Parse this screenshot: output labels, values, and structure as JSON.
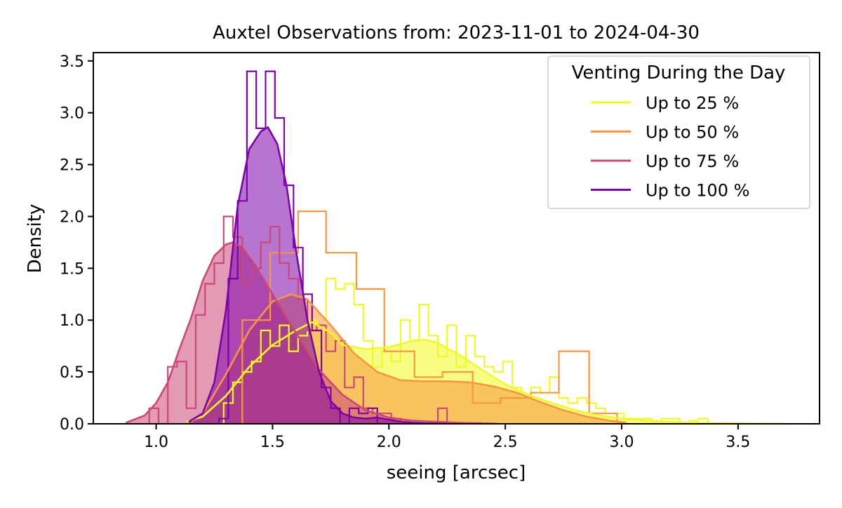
{
  "chart_data": {
    "type": "histogram_kde",
    "title": "Auxtel Observations from: 2023-11-01 to 2024-04-30",
    "xlabel": "seeing [arcsec]",
    "ylabel": "Density",
    "xlim": [
      0.73,
      3.85
    ],
    "ylim": [
      0,
      3.58
    ],
    "xticks": [
      1.0,
      1.5,
      2.0,
      2.5,
      3.0,
      3.5
    ],
    "yticks": [
      0.0,
      0.5,
      1.0,
      1.5,
      2.0,
      2.5,
      3.0,
      3.5
    ],
    "grid": false,
    "legend": {
      "title": "Venting During the Day",
      "position": "top-right"
    },
    "series": [
      {
        "name": "Up to 25 %",
        "color": "#f0f921",
        "hist_edges": [
          1.29,
          1.33,
          1.37,
          1.41,
          1.45,
          1.49,
          1.53,
          1.57,
          1.61,
          1.65,
          1.69,
          1.73,
          1.77,
          1.81,
          1.85,
          1.89,
          1.93,
          1.97,
          2.01,
          2.05,
          2.09,
          2.13,
          2.17,
          2.21,
          2.25,
          2.29,
          2.33,
          2.37,
          2.41,
          2.45,
          2.49,
          2.53,
          2.57,
          2.61,
          2.65,
          2.69,
          2.73,
          2.77,
          2.81,
          2.85,
          2.89,
          2.93,
          2.97,
          3.01,
          3.05,
          3.09,
          3.13,
          3.17,
          3.21,
          3.25,
          3.29,
          3.33,
          3.37
        ],
        "hist_density": [
          0.2,
          0.4,
          0.5,
          0.6,
          0.9,
          0.75,
          0.95,
          0.7,
          0.85,
          1.0,
          0.9,
          1.4,
          1.3,
          1.35,
          1.15,
          0.8,
          0.55,
          0.7,
          0.6,
          1.0,
          0.8,
          1.15,
          0.85,
          0.65,
          0.95,
          0.55,
          0.85,
          0.65,
          0.55,
          0.5,
          0.6,
          0.35,
          0.25,
          0.35,
          0.3,
          0.45,
          0.25,
          0.2,
          0.25,
          0.2,
          0.15,
          0.1,
          0.1,
          0.05,
          0.05,
          0.05,
          0.0,
          0.05,
          0.05,
          0.0,
          0.03,
          0.05
        ],
        "kde_x": [
          1.13,
          1.2,
          1.3,
          1.4,
          1.5,
          1.6,
          1.67,
          1.75,
          1.8,
          1.9,
          2.0,
          2.1,
          2.15,
          2.2,
          2.3,
          2.4,
          2.5,
          2.6,
          2.7,
          2.8,
          2.9,
          3.0,
          3.1,
          3.2,
          3.3,
          3.4,
          3.5,
          3.6,
          3.7
        ],
        "kde_y": [
          0.02,
          0.07,
          0.27,
          0.55,
          0.76,
          0.9,
          0.98,
          0.88,
          0.76,
          0.72,
          0.74,
          0.8,
          0.81,
          0.79,
          0.67,
          0.52,
          0.38,
          0.28,
          0.2,
          0.13,
          0.08,
          0.05,
          0.03,
          0.02,
          0.01,
          0.006,
          0.003,
          0.001,
          0.0
        ]
      },
      {
        "name": "Up to 50 %",
        "color": "#f89540",
        "hist_edges": [
          1.37,
          1.49,
          1.61,
          1.73,
          1.86,
          1.98,
          2.11,
          2.23,
          2.36,
          2.48,
          2.61,
          2.73,
          2.86,
          2.98
        ],
        "hist_density": [
          1.0,
          1.65,
          2.05,
          1.65,
          1.3,
          0.7,
          0.45,
          0.5,
          0.2,
          0.25,
          0.3,
          0.7,
          0.1
        ],
        "kde_x": [
          1.15,
          1.2,
          1.3,
          1.4,
          1.5,
          1.58,
          1.65,
          1.75,
          1.85,
          1.95,
          2.05,
          2.15,
          2.25,
          2.35,
          2.45,
          2.55,
          2.65,
          2.75,
          2.85,
          2.95,
          3.02
        ],
        "kde_y": [
          0.02,
          0.1,
          0.48,
          0.9,
          1.18,
          1.25,
          1.2,
          0.95,
          0.68,
          0.5,
          0.42,
          0.41,
          0.41,
          0.4,
          0.36,
          0.3,
          0.21,
          0.13,
          0.07,
          0.03,
          0.01
        ]
      },
      {
        "name": "Up to 75 %",
        "color": "#cc4778",
        "hist_edges": [
          0.97,
          1.01,
          1.05,
          1.09,
          1.13,
          1.17,
          1.21,
          1.25,
          1.29,
          1.33,
          1.37,
          1.41,
          1.45,
          1.49,
          1.53,
          1.57,
          1.61,
          1.65,
          1.69,
          1.73,
          1.77,
          1.81,
          1.85,
          1.89,
          1.93,
          1.97,
          2.01,
          2.05,
          2.09,
          2.13,
          2.17,
          2.21,
          2.25
        ],
        "hist_density": [
          0.15,
          0.0,
          0.55,
          0.6,
          0.15,
          1.05,
          1.35,
          1.55,
          2.0,
          1.8,
          1.35,
          1.5,
          1.75,
          1.9,
          1.55,
          1.4,
          1.2,
          0.9,
          0.95,
          0.7,
          0.8,
          0.35,
          0.45,
          0.15,
          0.1,
          0.1,
          0.05,
          0.0,
          0.0,
          0.0,
          0.0,
          0.15
        ],
        "kde_x": [
          0.87,
          0.95,
          1.0,
          1.05,
          1.1,
          1.15,
          1.2,
          1.25,
          1.3,
          1.33,
          1.37,
          1.42,
          1.5,
          1.6,
          1.7,
          1.8,
          1.9,
          2.0,
          2.1,
          2.2,
          2.3,
          2.4,
          2.47
        ],
        "kde_y": [
          0.01,
          0.08,
          0.2,
          0.4,
          0.72,
          1.02,
          1.38,
          1.62,
          1.73,
          1.75,
          1.7,
          1.55,
          1.25,
          0.88,
          0.52,
          0.28,
          0.13,
          0.06,
          0.03,
          0.02,
          0.01,
          0.005,
          0.0
        ]
      },
      {
        "name": "Up to 100 %",
        "color": "#7e03a8",
        "hist_edges": [
          1.27,
          1.31,
          1.35,
          1.39,
          1.43,
          1.47,
          1.51,
          1.55,
          1.59,
          1.63,
          1.67,
          1.71,
          1.75,
          1.79,
          1.83,
          1.87,
          1.91,
          1.95
        ],
        "hist_density": [
          0.05,
          1.4,
          2.15,
          3.4,
          2.85,
          3.4,
          2.95,
          2.3,
          1.7,
          1.25,
          0.9,
          0.35,
          0.15,
          0.0,
          0.15,
          0.1,
          0.15
        ],
        "kde_x": [
          1.14,
          1.2,
          1.25,
          1.3,
          1.35,
          1.4,
          1.45,
          1.48,
          1.52,
          1.56,
          1.6,
          1.65,
          1.7,
          1.75,
          1.8,
          1.85,
          1.9,
          1.95,
          2.0,
          2.05,
          2.1,
          2.15,
          2.25
        ],
        "kde_y": [
          0.02,
          0.1,
          0.4,
          1.1,
          2.1,
          2.65,
          2.82,
          2.86,
          2.7,
          2.3,
          1.68,
          1.0,
          0.5,
          0.22,
          0.1,
          0.06,
          0.05,
          0.06,
          0.04,
          0.02,
          0.01,
          0.005,
          0.0
        ]
      }
    ]
  }
}
